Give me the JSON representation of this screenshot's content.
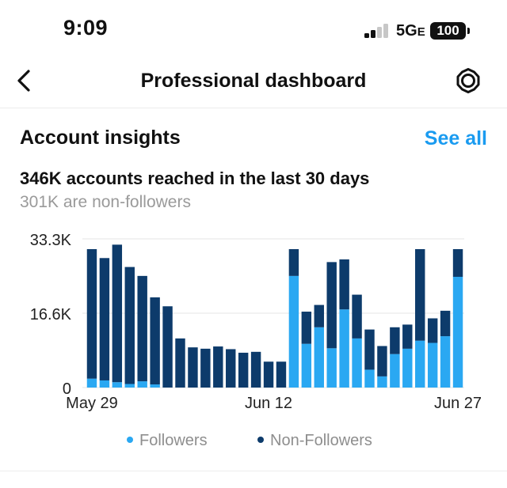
{
  "status_bar": {
    "time": "9:09",
    "network": "5G",
    "network_suffix": "E",
    "battery": "100"
  },
  "nav": {
    "title": "Professional dashboard",
    "back_icon": "chevron-left-icon",
    "settings_icon": "gear-icon"
  },
  "insights": {
    "title": "Account insights",
    "see_all": "See all",
    "reach_summary": "346K accounts reached in the last 30 days",
    "non_followers_summary": "301K are non-followers"
  },
  "colors": {
    "followers": "#2aa8f2",
    "non_followers": "#0d3b6b",
    "accent": "#1a9bf0",
    "legend_followers_dot": "#2aa8f2",
    "legend_non_followers_dot": "#0d3b6b"
  },
  "chart_data": {
    "type": "bar",
    "stacked": true,
    "x_labels": [
      "May 29",
      "Jun 12",
      "Jun 27"
    ],
    "x_label_days": [
      0,
      14,
      29
    ],
    "y_ticks": [
      "33.3K",
      "16.6K",
      "0"
    ],
    "ylim": [
      0,
      33300
    ],
    "grid": true,
    "legend_position": "bottom-center",
    "series": [
      {
        "name": "Followers",
        "values": [
          2000,
          1600,
          1200,
          800,
          1400,
          700,
          0,
          0,
          0,
          0,
          0,
          0,
          0,
          0,
          0,
          0,
          25000,
          9800,
          13500,
          8800,
          17500,
          11000,
          4000,
          2500,
          7500,
          8700,
          10500,
          10000,
          11500,
          24800
        ]
      },
      {
        "name": "Non-Followers",
        "values": [
          29000,
          27400,
          30800,
          26200,
          23600,
          19500,
          18200,
          11000,
          9000,
          8700,
          9200,
          8600,
          7800,
          8000,
          5800,
          5800,
          6000,
          7200,
          5000,
          19300,
          11200,
          9800,
          9000,
          6800,
          6000,
          5400,
          20500,
          5500,
          5700,
          6200
        ]
      }
    ]
  },
  "legend": {
    "followers_label": "Followers",
    "non_followers_label": "Non-Followers"
  }
}
